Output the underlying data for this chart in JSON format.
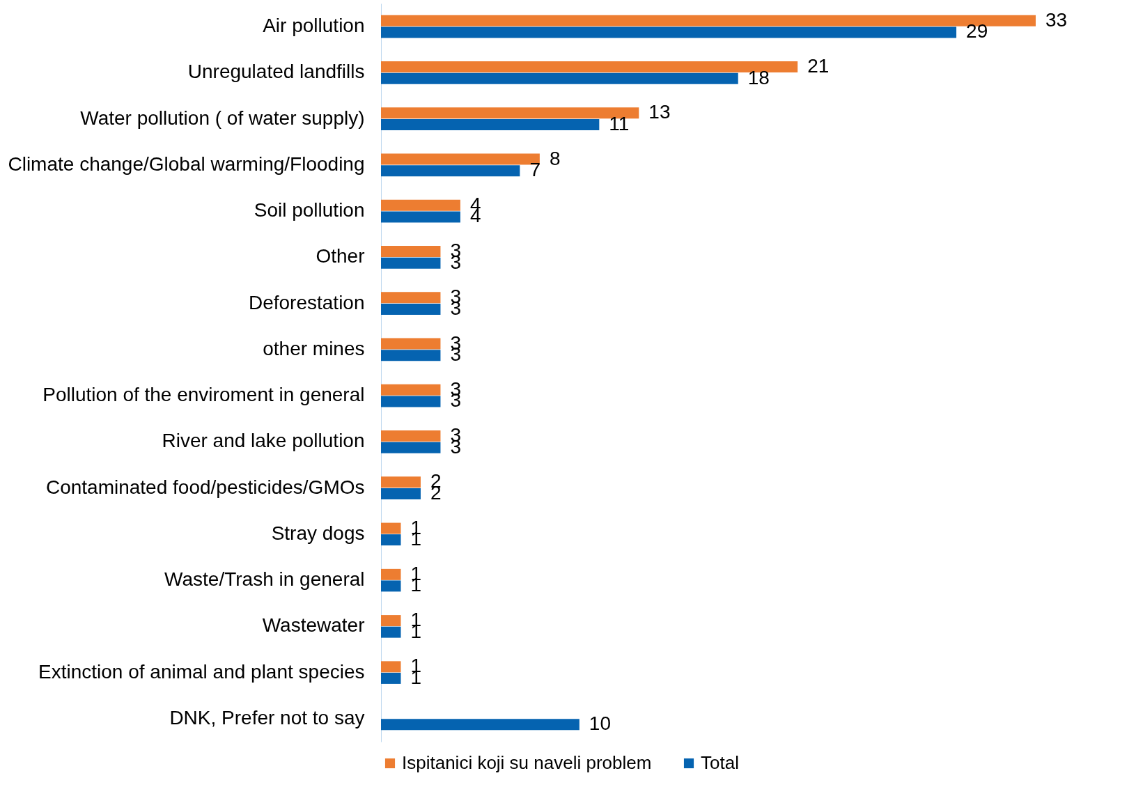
{
  "chart_data": {
    "type": "bar",
    "orientation": "horizontal",
    "categories": [
      "Air pollution",
      "Unregulated landfills",
      "Water pollution ( of water supply)",
      "Climate change/Global warming/Flooding",
      "Soil pollution",
      "Other",
      "Deforestation",
      "other mines",
      "Pollution of the enviroment in general",
      "River and lake pollution",
      "Contaminated food/pesticides/GMOs",
      "Stray dogs",
      "Waste/Trash in general",
      "Wastewater",
      "Extinction of animal and plant species",
      "DNK, Prefer not to say"
    ],
    "series": [
      {
        "name": "Ispitanici koji su naveli problem",
        "color": "#ed7d31",
        "values": [
          33,
          21,
          13,
          8,
          4,
          3,
          3,
          3,
          3,
          3,
          2,
          1,
          1,
          1,
          1,
          null
        ]
      },
      {
        "name": "Total",
        "color": "#0563b0",
        "values": [
          29,
          18,
          11,
          7,
          4,
          3,
          3,
          3,
          3,
          3,
          2,
          1,
          1,
          1,
          1,
          10
        ]
      }
    ],
    "data_labels": true,
    "legend": "bottom",
    "grid": false
  }
}
